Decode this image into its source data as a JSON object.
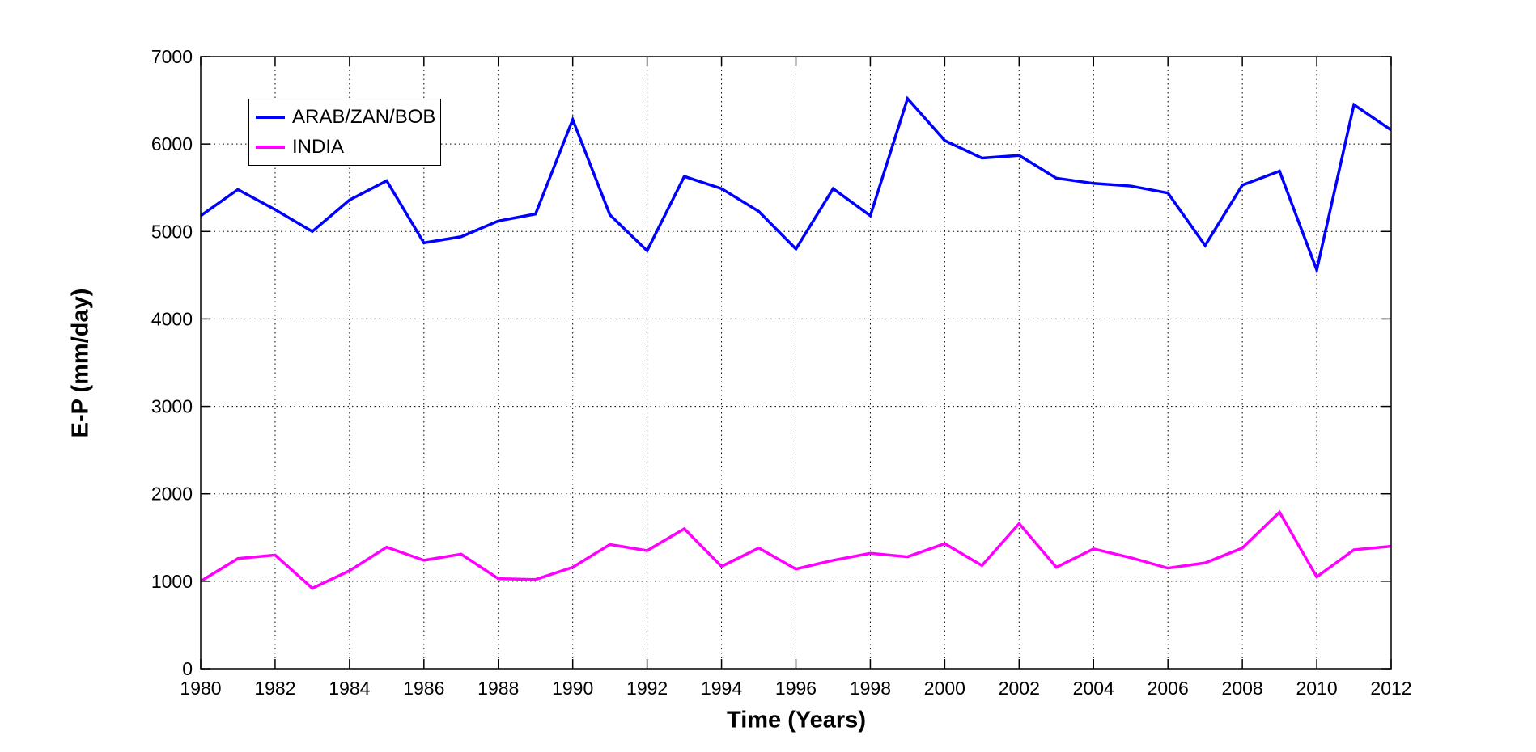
{
  "figure": {
    "xlabel": "Time (Years)",
    "ylabel": "E-P (mm/day)",
    "background": "#ffffff"
  },
  "legend": {
    "items": [
      {
        "label": "ARAB/ZAN/BOB",
        "color": "#0000FF"
      },
      {
        "label": "INDIA",
        "color": "#FF00FF"
      }
    ]
  },
  "chart_data": {
    "type": "line",
    "title": "",
    "xlabel": "Time (Years)",
    "ylabel": "E-P (mm/day)",
    "xlim": [
      1980,
      2012
    ],
    "ylim": [
      0,
      7000
    ],
    "xticks": [
      1980,
      1982,
      1984,
      1986,
      1988,
      1990,
      1992,
      1994,
      1996,
      1998,
      2000,
      2002,
      2004,
      2006,
      2008,
      2010,
      2012
    ],
    "yticks": [
      0,
      1000,
      2000,
      3000,
      4000,
      5000,
      6000,
      7000
    ],
    "grid": true,
    "legend_position": "top-left",
    "x": [
      1980,
      1981,
      1982,
      1983,
      1984,
      1985,
      1986,
      1987,
      1988,
      1989,
      1990,
      1991,
      1992,
      1993,
      1994,
      1995,
      1996,
      1997,
      1998,
      1999,
      2000,
      2001,
      2002,
      2003,
      2004,
      2005,
      2006,
      2007,
      2008,
      2009,
      2010,
      2011,
      2012
    ],
    "series": [
      {
        "name": "ARAB/ZAN/BOB",
        "color": "#0000FF",
        "values": [
          5180,
          5480,
          5250,
          5000,
          5360,
          5580,
          4870,
          4940,
          5120,
          5200,
          6280,
          5190,
          4780,
          5630,
          5490,
          5230,
          4800,
          5490,
          5180,
          6520,
          6040,
          5840,
          5870,
          5610,
          5550,
          5520,
          5440,
          4840,
          5530,
          5690,
          4560,
          6450,
          6160
        ]
      },
      {
        "name": "INDIA",
        "color": "#FF00FF",
        "values": [
          1000,
          1260,
          1300,
          920,
          1120,
          1390,
          1240,
          1310,
          1030,
          1020,
          1160,
          1420,
          1350,
          1600,
          1170,
          1380,
          1140,
          1240,
          1320,
          1280,
          1430,
          1180,
          1660,
          1160,
          1370,
          1270,
          1150,
          1210,
          1380,
          1790,
          1050,
          1360,
          1400
        ]
      }
    ]
  }
}
